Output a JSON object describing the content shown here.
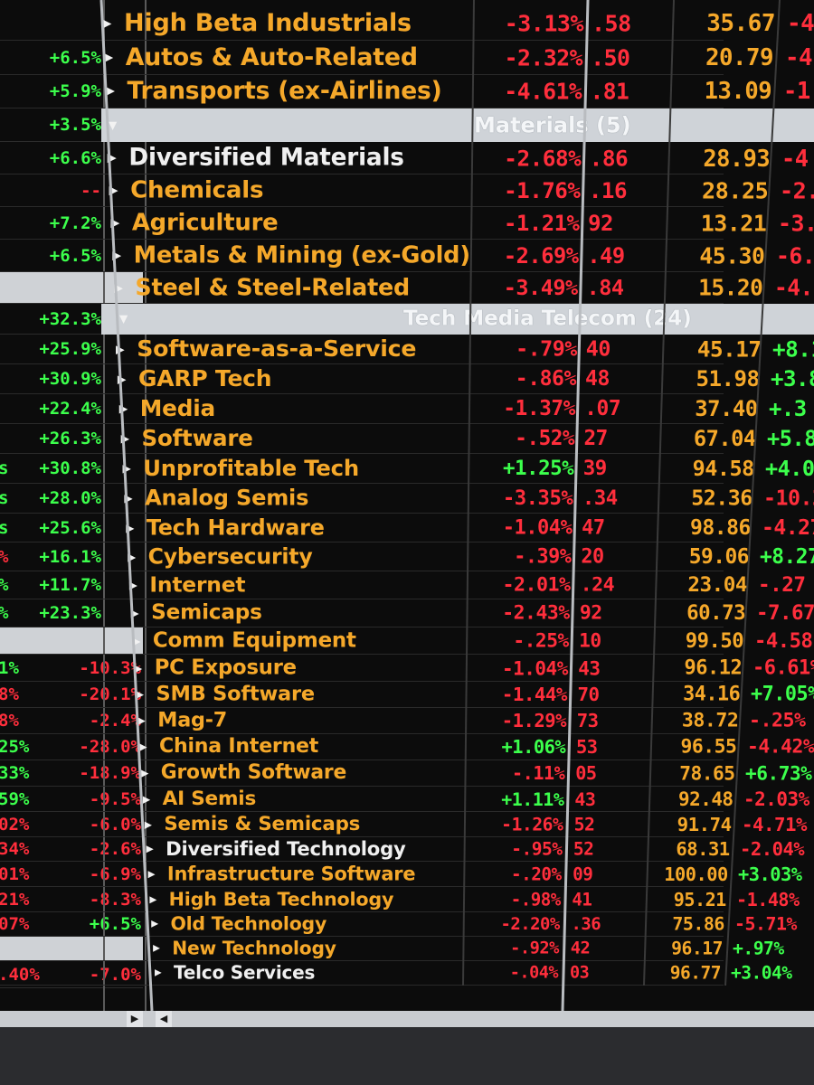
{
  "left_strip": [
    {
      "prev": "",
      "val": "",
      "pc": "green",
      "vc": "green"
    },
    {
      "prev": "",
      "val": "+6.5%",
      "pc": "green",
      "vc": "green"
    },
    {
      "prev": "",
      "val": "+5.9%",
      "pc": "green",
      "vc": "green"
    },
    {
      "prev": "",
      "val": "+3.5%",
      "pc": "green",
      "vc": "green"
    },
    {
      "prev": "",
      "val": "+6.6%",
      "pc": "green",
      "vc": "green"
    },
    {
      "prev": "",
      "val": "--",
      "pc": "green",
      "vc": "red"
    },
    {
      "prev": "",
      "val": "+7.2%",
      "pc": "green",
      "vc": "green"
    },
    {
      "prev": "",
      "val": "+6.5%",
      "pc": "green",
      "vc": "green"
    },
    {
      "prev": "",
      "val": "+32.3%",
      "pc": "green",
      "vc": "green"
    },
    {
      "prev": "",
      "val": "+25.9%",
      "pc": "green",
      "vc": "green"
    },
    {
      "prev": "",
      "val": "+30.9%",
      "pc": "green",
      "vc": "green"
    },
    {
      "prev": "",
      "val": "+22.4%",
      "pc": "green",
      "vc": "green"
    },
    {
      "prev": "",
      "val": "+26.3%",
      "pc": "green",
      "vc": "green"
    },
    {
      "prev": "s",
      "val": "+30.8%",
      "pc": "green",
      "vc": "green"
    },
    {
      "prev": "s",
      "val": "+28.0%",
      "pc": "green",
      "vc": "green"
    },
    {
      "prev": "s",
      "val": "+25.6%",
      "pc": "green",
      "vc": "green"
    },
    {
      "prev": "%",
      "val": "+16.1%",
      "pc": "red",
      "vc": "green"
    },
    {
      "prev": "%",
      "val": "+11.7%",
      "pc": "green",
      "vc": "green"
    },
    {
      "prev": "%",
      "val": "+23.3%",
      "pc": "green",
      "vc": "green"
    },
    {
      "prev": "1%",
      "val": "-10.3%",
      "pc": "green",
      "vc": "red"
    },
    {
      "prev": "8%",
      "val": "-20.1%",
      "pc": "red",
      "vc": "red"
    },
    {
      "prev": "8%",
      "val": "-2.4%",
      "pc": "red",
      "vc": "red"
    },
    {
      "prev": "25%",
      "val": "-28.0%",
      "pc": "green",
      "vc": "red"
    },
    {
      "prev": "33%",
      "val": "-18.9%",
      "pc": "green",
      "vc": "red"
    },
    {
      "prev": "59%",
      "val": "-9.5%",
      "pc": "green",
      "vc": "red"
    },
    {
      "prev": "02%",
      "val": "-6.0%",
      "pc": "red",
      "vc": "red"
    },
    {
      "prev": "34%",
      "val": "-2.6%",
      "pc": "red",
      "vc": "red"
    },
    {
      "prev": "01%",
      "val": "-6.9%",
      "pc": "red",
      "vc": "red"
    },
    {
      "prev": "21%",
      "val": "-8.3%",
      "pc": "red",
      "vc": "red"
    },
    {
      "prev": "07%",
      "val": "+6.5%",
      "pc": "red",
      "vc": "green"
    },
    {
      "prev": ".40%",
      "val": "-7.0%",
      "pc": "red",
      "vc": "red"
    }
  ],
  "sections": [
    {
      "title": "Materials (5)"
    },
    {
      "title": "Tech Media Telecom (24)"
    }
  ],
  "rows": [
    {
      "name": "High Beta Industrials",
      "nc": "orange",
      "chg": "-3.13%",
      "cc": "red",
      "mid": ".58",
      "mc": "red",
      "price": "35.67",
      "pc": "orange",
      "last": "-4",
      "lc": "red"
    },
    {
      "name": "Autos & Auto-Related",
      "nc": "orange",
      "chg": "-2.32%",
      "cc": "red",
      "mid": ".50",
      "mc": "red",
      "price": "20.79",
      "pc": "orange",
      "last": "-4",
      "lc": "red"
    },
    {
      "name": "Transports (ex-Airlines)",
      "nc": "orange",
      "chg": "-4.61%",
      "cc": "red",
      "mid": ".81",
      "mc": "red",
      "price": "13.09",
      "pc": "orange",
      "last": "-1",
      "lc": "red"
    },
    {
      "name": "Diversified Materials",
      "nc": "white",
      "chg": "-2.68%",
      "cc": "red",
      "mid": ".86",
      "mc": "red",
      "price": "28.93",
      "pc": "orange",
      "last": "-4",
      "lc": "red"
    },
    {
      "name": "Chemicals",
      "nc": "orange",
      "chg": "-1.76%",
      "cc": "red",
      "mid": ".16",
      "mc": "red",
      "price": "28.25",
      "pc": "orange",
      "last": "-2.",
      "lc": "red"
    },
    {
      "name": "Agriculture",
      "nc": "orange",
      "chg": "-1.21%",
      "cc": "red",
      "mid": "92",
      "mc": "red",
      "price": "13.21",
      "pc": "orange",
      "last": "-3.",
      "lc": "red"
    },
    {
      "name": "Metals & Mining (ex-Gold)",
      "nc": "orange",
      "chg": "-2.69%",
      "cc": "red",
      "mid": ".49",
      "mc": "red",
      "price": "45.30",
      "pc": "orange",
      "last": "-6.",
      "lc": "red"
    },
    {
      "name": "Steel & Steel-Related",
      "nc": "orange",
      "chg": "-3.49%",
      "cc": "red",
      "mid": ".84",
      "mc": "red",
      "price": "15.20",
      "pc": "orange",
      "last": "-4.",
      "lc": "red"
    },
    {
      "name": "Software-as-a-Service",
      "nc": "orange",
      "chg": "-.79%",
      "cc": "red",
      "mid": "40",
      "mc": "red",
      "price": "45.17",
      "pc": "orange",
      "last": "+8.1",
      "lc": "green"
    },
    {
      "name": "GARP Tech",
      "nc": "orange",
      "chg": "-.86%",
      "cc": "red",
      "mid": "48",
      "mc": "red",
      "price": "51.98",
      "pc": "orange",
      "last": "+3.8",
      "lc": "green"
    },
    {
      "name": "Media",
      "nc": "orange",
      "chg": "-1.37%",
      "cc": "red",
      "mid": ".07",
      "mc": "red",
      "price": "37.40",
      "pc": "orange",
      "last": "+.3",
      "lc": "green"
    },
    {
      "name": "Software",
      "nc": "orange",
      "chg": "-.52%",
      "cc": "red",
      "mid": "27",
      "mc": "red",
      "price": "67.04",
      "pc": "orange",
      "last": "+5.8",
      "lc": "green"
    },
    {
      "name": "Unprofitable Tech",
      "nc": "orange",
      "chg": "+1.25%",
      "cc": "green",
      "mid": "39",
      "mc": "red",
      "price": "94.58",
      "pc": "orange",
      "last": "+4.0",
      "lc": "green"
    },
    {
      "name": "Analog Semis",
      "nc": "orange",
      "chg": "-3.35%",
      "cc": "red",
      "mid": ".34",
      "mc": "red",
      "price": "52.36",
      "pc": "orange",
      "last": "-10.2",
      "lc": "red"
    },
    {
      "name": "Tech Hardware",
      "nc": "orange",
      "chg": "-1.04%",
      "cc": "red",
      "mid": "47",
      "mc": "red",
      "price": "98.86",
      "pc": "orange",
      "last": "-4.27",
      "lc": "red"
    },
    {
      "name": "Cybersecurity",
      "nc": "orange",
      "chg": "-.39%",
      "cc": "red",
      "mid": "20",
      "mc": "red",
      "price": "59.06",
      "pc": "orange",
      "last": "+8.27",
      "lc": "green"
    },
    {
      "name": "Internet",
      "nc": "orange",
      "chg": "-2.01%",
      "cc": "red",
      "mid": ".24",
      "mc": "red",
      "price": "23.04",
      "pc": "orange",
      "last": "-.27",
      "lc": "red"
    },
    {
      "name": "Semicaps",
      "nc": "orange",
      "chg": "-2.43%",
      "cc": "red",
      "mid": "92",
      "mc": "red",
      "price": "60.73",
      "pc": "orange",
      "last": "-7.67",
      "lc": "red"
    },
    {
      "name": "Comm Equipment",
      "nc": "orange",
      "chg": "-.25%",
      "cc": "red",
      "mid": "10",
      "mc": "red",
      "price": "99.50",
      "pc": "orange",
      "last": "-4.58",
      "lc": "red"
    },
    {
      "name": "PC Exposure",
      "nc": "orange",
      "chg": "-1.04%",
      "cc": "red",
      "mid": "43",
      "mc": "red",
      "price": "96.12",
      "pc": "orange",
      "last": "-6.61%",
      "lc": "red"
    },
    {
      "name": "SMB Software",
      "nc": "orange",
      "chg": "-1.44%",
      "cc": "red",
      "mid": "70",
      "mc": "red",
      "price": "34.16",
      "pc": "orange",
      "last": "+7.05%",
      "lc": "green"
    },
    {
      "name": "Mag-7",
      "nc": "orange",
      "chg": "-1.29%",
      "cc": "red",
      "mid": "73",
      "mc": "red",
      "price": "38.72",
      "pc": "orange",
      "last": "-.25%",
      "lc": "red"
    },
    {
      "name": "China Internet",
      "nc": "orange",
      "chg": "+1.06%",
      "cc": "green",
      "mid": "53",
      "mc": "red",
      "price": "96.55",
      "pc": "orange",
      "last": "-4.42%",
      "lc": "red"
    },
    {
      "name": "Growth Software",
      "nc": "orange",
      "chg": "-.11%",
      "cc": "red",
      "mid": "05",
      "mc": "red",
      "price": "78.65",
      "pc": "orange",
      "last": "+6.73%",
      "lc": "green"
    },
    {
      "name": "AI Semis",
      "nc": "orange",
      "chg": "+1.11%",
      "cc": "green",
      "mid": "43",
      "mc": "red",
      "price": "92.48",
      "pc": "orange",
      "last": "-2.03%",
      "lc": "red"
    },
    {
      "name": "Semis & Semicaps",
      "nc": "orange",
      "chg": "-1.26%",
      "cc": "red",
      "mid": "52",
      "mc": "red",
      "price": "91.74",
      "pc": "orange",
      "last": "-4.71%",
      "lc": "red"
    },
    {
      "name": "Diversified Technology",
      "nc": "white",
      "chg": "-.95%",
      "cc": "red",
      "mid": "52",
      "mc": "red",
      "price": "68.31",
      "pc": "orange",
      "last": "-2.04%",
      "lc": "red"
    },
    {
      "name": "Infrastructure Software",
      "nc": "orange",
      "chg": "-.20%",
      "cc": "red",
      "mid": "09",
      "mc": "red",
      "price": "100.00",
      "pc": "orange",
      "last": "+3.03%",
      "lc": "green"
    },
    {
      "name": "High Beta Technology",
      "nc": "orange",
      "chg": "-.98%",
      "cc": "red",
      "mid": "41",
      "mc": "red",
      "price": "95.21",
      "pc": "orange",
      "last": "-1.48%",
      "lc": "red"
    },
    {
      "name": "Old Technology",
      "nc": "orange",
      "chg": "-2.20%",
      "cc": "red",
      "mid": ".36",
      "mc": "red",
      "price": "75.86",
      "pc": "orange",
      "last": "-5.71%",
      "lc": "red"
    },
    {
      "name": "New Technology",
      "nc": "orange",
      "chg": "-.92%",
      "cc": "red",
      "mid": "42",
      "mc": "red",
      "price": "96.17",
      "pc": "orange",
      "last": "+.97%",
      "lc": "green"
    },
    {
      "name": "Telco Services",
      "nc": "white",
      "chg": "-.04%",
      "cc": "red",
      "mid": "03",
      "mc": "red",
      "price": "96.77",
      "pc": "orange",
      "last": "+3.04%",
      "lc": "green"
    }
  ]
}
